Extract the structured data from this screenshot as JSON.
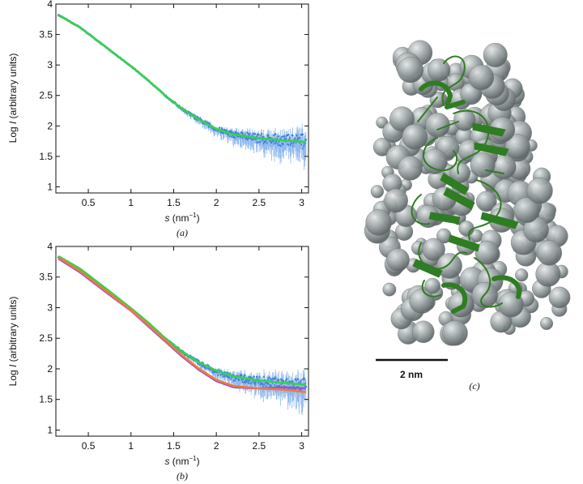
{
  "chart_data": [
    {
      "type": "scatter",
      "panel_label": "(a)",
      "xlabel_var": "s",
      "xlabel_unit": " (nm",
      "xlabel_exp": "−1",
      "xlabel_close": ")",
      "ylabel_prefix": "Log ",
      "ylabel_var": "I",
      "ylabel_suffix": " (arbitrary units)",
      "xlim": [
        0.12,
        3.08
      ],
      "ylim": [
        0.9,
        4.0
      ],
      "xticks": [
        "0.5",
        "1",
        "1.5",
        "2",
        "2.5",
        "3"
      ],
      "yticks": [
        "1",
        "1.5",
        "2",
        "2.5",
        "3",
        "3.5",
        "4"
      ],
      "series": [
        {
          "kind": "experimental",
          "color": "#3d7fd9",
          "x": [
            0.15,
            0.4,
            0.7,
            1.0,
            1.2,
            1.4,
            1.6,
            1.8,
            2.0,
            2.2,
            2.5,
            2.8,
            3.05
          ],
          "y": [
            3.82,
            3.62,
            3.3,
            2.98,
            2.75,
            2.5,
            2.28,
            2.1,
            1.95,
            1.86,
            1.8,
            1.76,
            1.74
          ]
        },
        {
          "kind": "fit",
          "color": "#36d24c",
          "x": [
            0.15,
            0.4,
            0.7,
            1.0,
            1.2,
            1.4,
            1.6,
            1.8,
            2.0,
            2.2,
            2.5,
            2.8,
            3.05
          ],
          "y": [
            3.82,
            3.62,
            3.3,
            2.98,
            2.75,
            2.5,
            2.28,
            2.1,
            1.95,
            1.86,
            1.8,
            1.76,
            1.74
          ]
        }
      ]
    },
    {
      "type": "scatter",
      "panel_label": "(b)",
      "xlabel_var": "s",
      "xlabel_unit": " (nm",
      "xlabel_exp": "−1",
      "xlabel_close": ")",
      "ylabel_prefix": "Log ",
      "ylabel_var": "I",
      "ylabel_suffix": " (arbitrary units)",
      "xlim": [
        0.12,
        3.08
      ],
      "ylim": [
        0.9,
        4.0
      ],
      "xticks": [
        "0.5",
        "1",
        "1.5",
        "2",
        "2.5",
        "3"
      ],
      "yticks": [
        "1",
        "1.5",
        "2",
        "2.5",
        "3",
        "3.5",
        "4"
      ],
      "series": [
        {
          "kind": "experimental",
          "color": "#3d7fd9",
          "x": [
            0.15,
            0.4,
            0.7,
            1.0,
            1.2,
            1.4,
            1.6,
            1.8,
            2.0,
            2.2,
            2.5,
            2.8,
            3.05
          ],
          "y": [
            3.82,
            3.62,
            3.3,
            2.98,
            2.75,
            2.5,
            2.28,
            2.1,
            1.95,
            1.86,
            1.8,
            1.76,
            1.74
          ]
        },
        {
          "kind": "fit",
          "color": "#36d24c",
          "x": [
            0.15,
            0.4,
            0.7,
            1.0,
            1.2,
            1.4,
            1.6,
            1.8,
            2.0,
            2.2,
            2.5,
            2.8,
            3.05
          ],
          "y": [
            3.84,
            3.64,
            3.32,
            2.99,
            2.76,
            2.5,
            2.28,
            2.1,
            1.97,
            1.88,
            1.81,
            1.77,
            1.74
          ]
        },
        {
          "kind": "fit",
          "color": "#9b55c9",
          "x": [
            0.15,
            0.4,
            0.7,
            1.0,
            1.2,
            1.4,
            1.6,
            1.8,
            2.0,
            2.2,
            2.5,
            2.8,
            3.05
          ],
          "y": [
            3.8,
            3.58,
            3.26,
            2.95,
            2.7,
            2.45,
            2.2,
            1.98,
            1.8,
            1.7,
            1.68,
            1.7,
            1.68
          ]
        },
        {
          "kind": "fit",
          "color": "#f07a3c",
          "x": [
            0.15,
            0.4,
            0.7,
            1.0,
            1.2,
            1.4,
            1.6,
            1.8,
            2.0,
            2.2,
            2.5,
            2.8,
            3.05
          ],
          "y": [
            3.82,
            3.6,
            3.28,
            2.96,
            2.72,
            2.47,
            2.22,
            2.0,
            1.82,
            1.72,
            1.68,
            1.66,
            1.62
          ]
        }
      ]
    }
  ],
  "panel_c": {
    "label": "(c)",
    "scale_bar_label": "2 nm",
    "sphere_color": "#9aa2a3",
    "ribbon_color": "#2f7d22"
  }
}
